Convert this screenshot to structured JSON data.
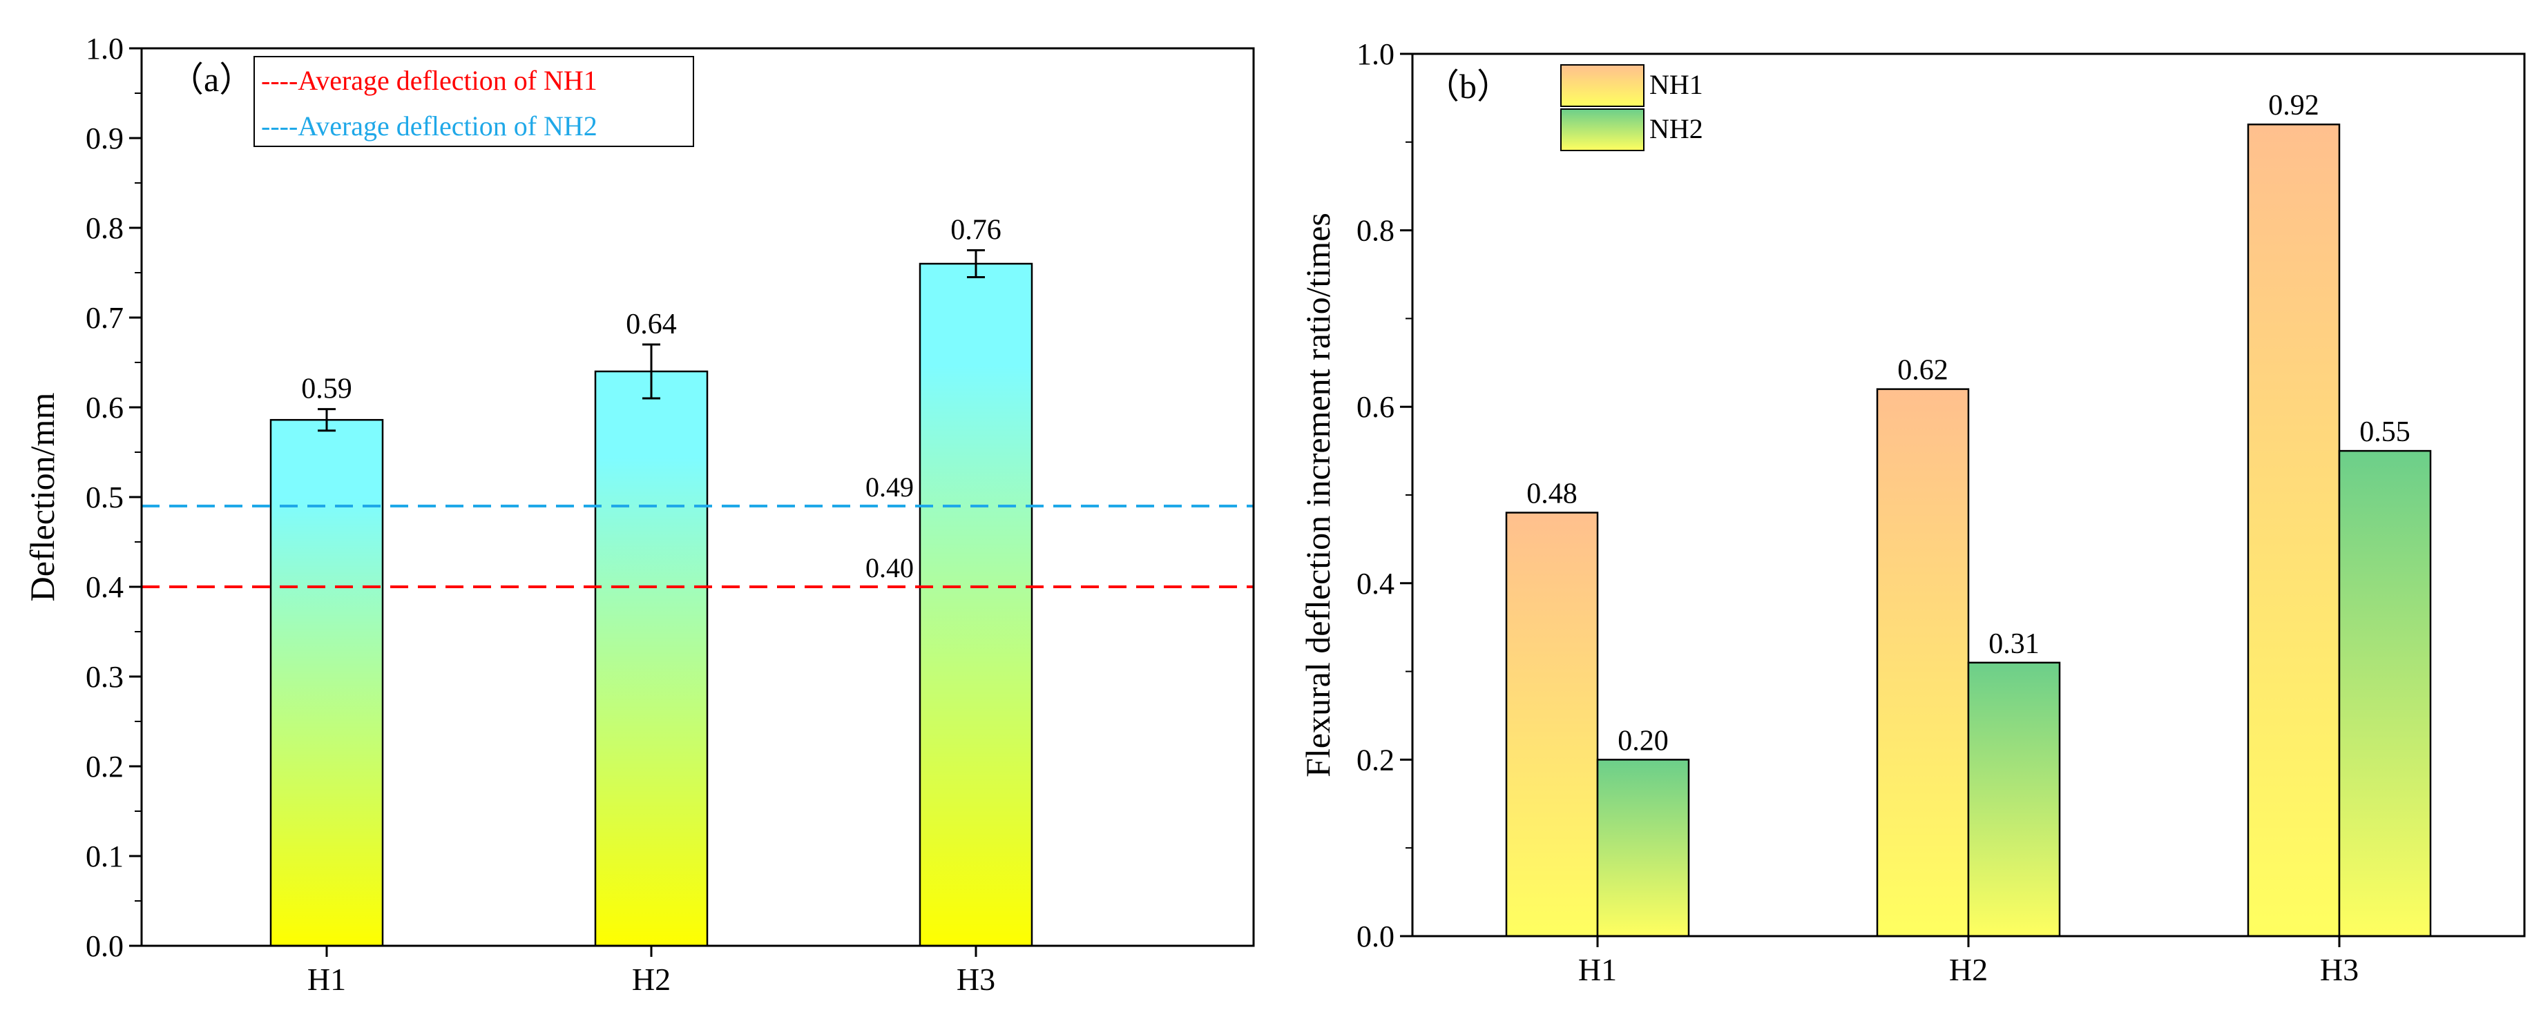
{
  "chart_data": [
    {
      "type": "bar",
      "panel_label": "（a）",
      "title": "",
      "xlabel": "",
      "ylabel": "Deflection/mm",
      "ylim": [
        0,
        1.0
      ],
      "ytick_step": 0.1,
      "yticks": [
        "0.0",
        "0.1",
        "0.2",
        "0.3",
        "0.4",
        "0.5",
        "0.6",
        "0.7",
        "0.8",
        "0.9",
        "1.0"
      ],
      "categories": [
        "H1",
        "H2",
        "H3"
      ],
      "series": [
        {
          "name": "Deflection",
          "values": [
            0.586,
            0.64,
            0.76
          ],
          "value_labels": [
            "0.59",
            "0.64",
            "0.76"
          ],
          "errors": [
            0.012,
            0.03,
            0.015
          ],
          "gradient_top": "#7ffcff",
          "gradient_bottom": "#ffff00"
        }
      ],
      "reference_lines": [
        {
          "name": "Average deflection of NH1",
          "legend_label": "----Average deflection of NH1",
          "value": 0.4,
          "label": "0.40",
          "color": "#ff0000"
        },
        {
          "name": "Average deflection of NH2",
          "legend_label": "----Average deflection of NH2",
          "value": 0.49,
          "label": "0.49",
          "color": "#1fa8e8"
        }
      ],
      "legend_position": "top-left",
      "grid": false
    },
    {
      "type": "bar",
      "panel_label": "（b）",
      "title": "",
      "xlabel": "",
      "ylabel": "Flexural deflection increment ratio/times",
      "ylim": [
        0,
        1.0
      ],
      "ytick_step": 0.2,
      "yticks": [
        "0.0",
        "0.2",
        "0.4",
        "0.6",
        "0.8",
        "1.0"
      ],
      "categories": [
        "H1",
        "H2",
        "H3"
      ],
      "series": [
        {
          "name": "NH1",
          "values": [
            0.48,
            0.62,
            0.92
          ],
          "value_labels": [
            "0.48",
            "0.62",
            "0.92"
          ],
          "gradient_top": "#ffc08e",
          "gradient_bottom": "#ffff60"
        },
        {
          "name": "NH2",
          "values": [
            0.2,
            0.31,
            0.55
          ],
          "value_labels": [
            "0.20",
            "0.31",
            "0.55"
          ],
          "gradient_top": "#6ccf8a",
          "gradient_bottom": "#ffff60"
        }
      ],
      "legend_position": "top-left",
      "grid": false
    }
  ]
}
